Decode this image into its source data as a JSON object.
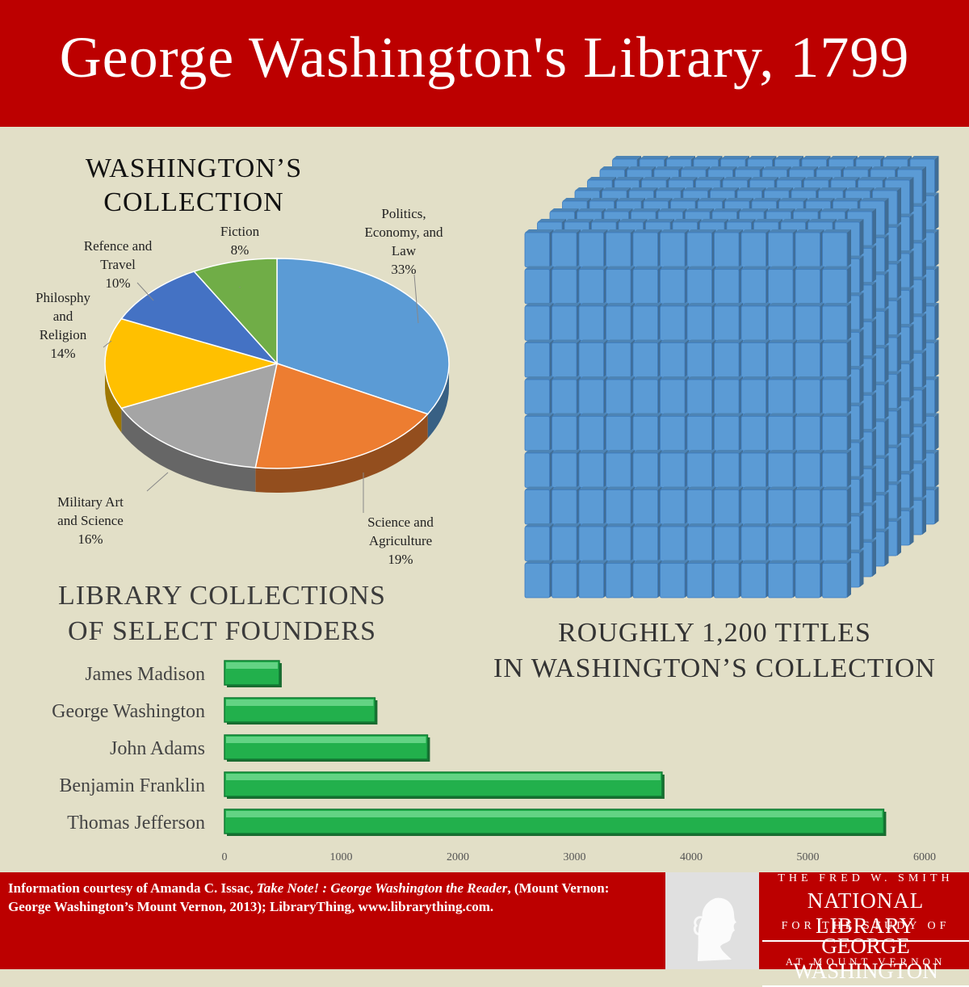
{
  "header": {
    "title": "George Washington's Library, 1799"
  },
  "pie": {
    "title_line1": "WASHINGTON’S",
    "title_line2": "COLLECTION",
    "slices": [
      {
        "name": "Politics,\nEconomy, and\nLaw",
        "pct_label": "33%",
        "value": 33,
        "color": "#5b9bd5"
      },
      {
        "name": "Science and\nAgriculture",
        "pct_label": "19%",
        "value": 19,
        "color": "#ed7d31"
      },
      {
        "name": "Military Art\nand Science",
        "pct_label": "16%",
        "value": 16,
        "color": "#a5a5a5"
      },
      {
        "name": "Philosphy\nand\nReligion",
        "pct_label": "14%",
        "value": 14,
        "color": "#ffc000"
      },
      {
        "name": "Refence and\nTravel",
        "pct_label": "10%",
        "value": 10,
        "color": "#4472c4"
      },
      {
        "name": "Fiction",
        "pct_label": "8%",
        "value": 8,
        "color": "#70ad47"
      }
    ]
  },
  "books": {
    "caption_line1": "ROUGHLY 1,200 TITLES",
    "caption_line2": "IN WASHINGTON’S COLLECTION",
    "color": "#5b9bd5"
  },
  "bars": {
    "title_line1": "LIBRARY COLLECTIONS",
    "title_line2": "OF SELECT FOUNDERS",
    "color": "#22b04c"
  },
  "chart_data": [
    {
      "type": "pie",
      "title": "WASHINGTON’S COLLECTION",
      "categories": [
        "Politics, Economy, and Law",
        "Science and Agriculture",
        "Military Art and Science",
        "Philosphy and Religion",
        "Refence and Travel",
        "Fiction"
      ],
      "values": [
        33,
        19,
        16,
        14,
        10,
        8
      ]
    },
    {
      "type": "bar",
      "title": "LIBRARY COLLECTIONS OF SELECT FOUNDERS",
      "categories": [
        "James Madison",
        "George Washington",
        "John Adams",
        "Benjamin Franklin",
        "Thomas Jefferson"
      ],
      "values": [
        470,
        1290,
        1740,
        3750,
        5650
      ],
      "xlim": [
        0,
        6000
      ],
      "xticks": [
        "0",
        "1000",
        "2000",
        "3000",
        "4000",
        "5000",
        "6000"
      ]
    }
  ],
  "footer": {
    "credit_a": "Information courtesy of  Amanda C. Issac, ",
    "credit_italic": "Take Note! : George Washington the Reader",
    "credit_b": ", (Mount Vernon: George Washington’s Mount Vernon, 2013); LibraryThing, www.librarything.com.",
    "brand_line1": "THE FRED W. SMITH",
    "brand_line2": "NATIONAL LIBRARY",
    "brand_line3": "FOR THE STUDY OF",
    "brand_line4": "GEORGE WASHINGTON",
    "brand_line5": "AT MOUNT VERNON"
  }
}
